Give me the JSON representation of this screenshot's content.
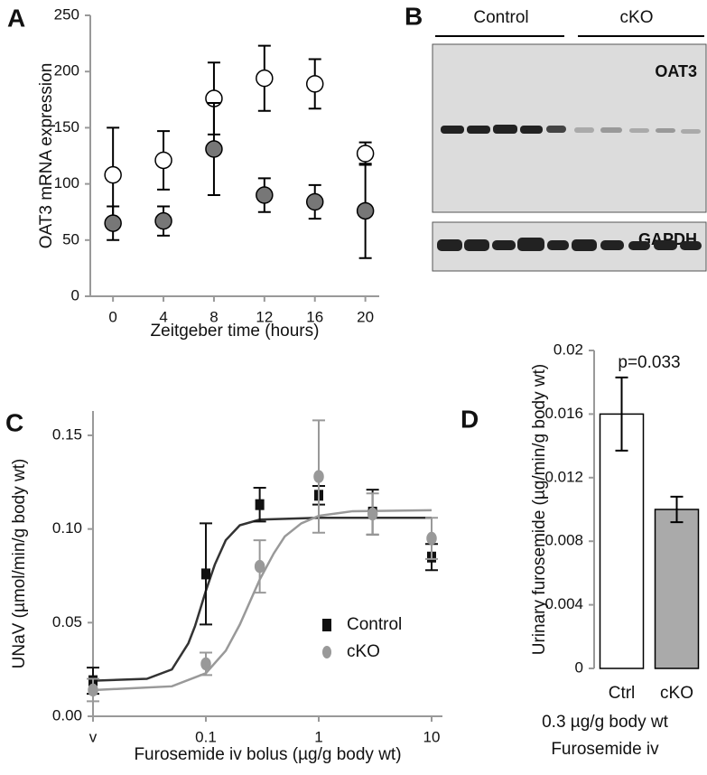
{
  "panels": [
    "A",
    "B",
    "C",
    "D"
  ],
  "blot": {
    "groups": [
      "Control",
      "cKO"
    ],
    "proteins": [
      "OAT3",
      "GAPDH"
    ]
  },
  "chart_data": [
    {
      "type": "scatter",
      "ylabel": "OAT3 mRNA expression",
      "xlabel": "Zeitgeber time (hours)",
      "x": [
        0,
        4,
        8,
        12,
        16,
        20
      ],
      "xlim": [
        -1.8,
        21.1
      ],
      "xticks": [
        0,
        4,
        8,
        12,
        16,
        20
      ],
      "ylim": [
        0,
        250
      ],
      "yticks": [
        0,
        50,
        100,
        150,
        200,
        250
      ],
      "series": [
        {
          "color": "#ffffff",
          "edgecolor": "#000000",
          "marker": "circle",
          "values": [
            108,
            121,
            176,
            194,
            189,
            127
          ],
          "errors": [
            42,
            26,
            32,
            29,
            22,
            10
          ]
        },
        {
          "color": "#777777",
          "edgecolor": "#000000",
          "marker": "circle",
          "values": [
            65,
            67,
            131,
            90,
            84,
            76
          ],
          "errors": [
            15,
            13,
            41,
            15,
            15,
            42
          ]
        }
      ]
    },
    {
      "type": "scatter",
      "xscale": "log",
      "ylabel": "UNaV (µmol/min/g body wt)",
      "xlabel": "Furosemide iv bolus (µg/g body wt)",
      "x": [
        0.01,
        0.1,
        0.3,
        1,
        3,
        10
      ],
      "xlim": [
        0.01,
        10
      ],
      "xticks": [
        {
          "value": 0.01,
          "label": "v"
        },
        0.1,
        1,
        10
      ],
      "ylim": [
        0,
        0.163
      ],
      "yticks": [
        {
          "value": 0,
          "label": "0.00"
        },
        0.05,
        {
          "value": 0.1,
          "label": "0.10"
        },
        0.15
      ],
      "legend": "lower right",
      "series": [
        {
          "name": "Control",
          "color": "#111111",
          "edgecolor": "#111111",
          "marker": "square",
          "values": [
            0.019,
            0.076,
            0.113,
            0.118,
            0.109,
            0.085
          ],
          "errors": [
            0.007,
            0.027,
            0.009,
            0.005,
            0.012,
            0.007
          ]
        },
        {
          "name": "cKO",
          "color": "#999999",
          "edgecolor": "#999999",
          "marker": "circle",
          "values": [
            0.014,
            0.028,
            0.08,
            0.128,
            0.108,
            0.095
          ],
          "errors": [
            0.006,
            0.006,
            0.014,
            0.03,
            0.011,
            0.011
          ]
        }
      ],
      "fits": [
        {
          "color": "#333333",
          "x": [
            0.01,
            0.03,
            0.05,
            0.07,
            0.08,
            0.09,
            0.1,
            0.12,
            0.15,
            0.2,
            0.3,
            1,
            10
          ],
          "values": [
            0.019,
            0.02,
            0.025,
            0.039,
            0.048,
            0.058,
            0.067,
            0.081,
            0.094,
            0.102,
            0.105,
            0.106,
            0.106
          ]
        },
        {
          "color": "#999999",
          "x": [
            0.01,
            0.05,
            0.1,
            0.15,
            0.2,
            0.3,
            0.4,
            0.5,
            0.7,
            1,
            2,
            10
          ],
          "values": [
            0.014,
            0.016,
            0.023,
            0.035,
            0.049,
            0.073,
            0.087,
            0.096,
            0.103,
            0.107,
            0.1095,
            0.11
          ]
        }
      ]
    },
    {
      "type": "bar",
      "ylabel": "Urinary furosemide (µg/min/g body wt)",
      "xlabel": [
        "0.3 µg/g body wt",
        "Furosemide iv"
      ],
      "annotation": "p=0.033",
      "categories": [
        "Ctrl",
        "cKO"
      ],
      "values": [
        0.016,
        0.01
      ],
      "errors": [
        0.0023,
        0.0008
      ],
      "colors": [
        "#ffffff",
        "#aaaaaa"
      ],
      "ylim": [
        0,
        0.02
      ],
      "yticks": [
        0,
        0.004,
        0.008,
        0.012,
        0.016,
        0.02
      ]
    }
  ]
}
